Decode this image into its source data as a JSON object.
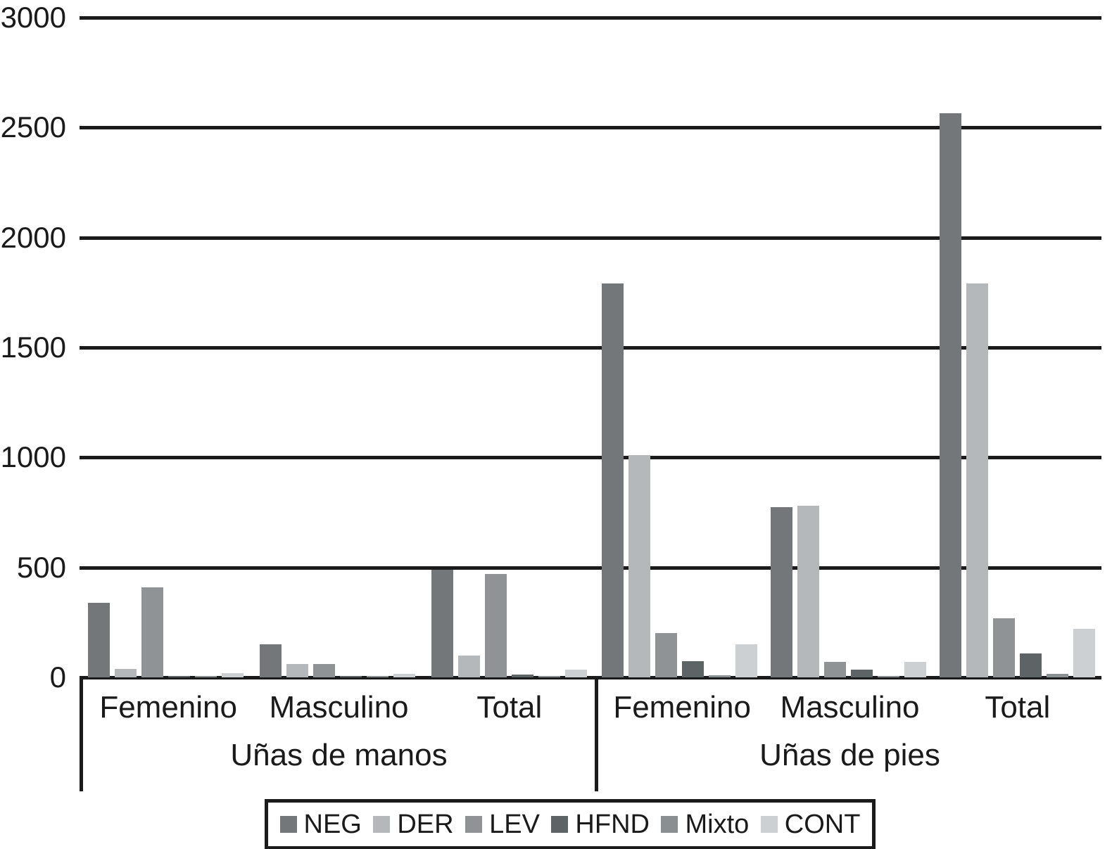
{
  "chart_data": {
    "type": "bar",
    "title": "",
    "xlabel": "",
    "ylabel": "",
    "ylim": [
      0,
      3000
    ],
    "yticks": [
      0,
      500,
      1000,
      1500,
      2000,
      2500,
      3000
    ],
    "grid": "horizontal",
    "legend_position": "bottom",
    "series_names": [
      "NEG",
      "DER",
      "LEV",
      "HFND",
      "Mixto",
      "CONT"
    ],
    "series_colors": [
      "#747779",
      "#b5b8bb",
      "#8f9396",
      "#5e6366",
      "#8a8f92",
      "#cdd0d2"
    ],
    "groups": [
      {
        "label": "Uñas de manos",
        "subgroups": [
          {
            "label": "Femenino",
            "values": [
              340,
              40,
              410,
              8,
              3,
              20
            ]
          },
          {
            "label": "Masculino",
            "values": [
              150,
              60,
              60,
              5,
              2,
              15
            ]
          },
          {
            "label": "Total",
            "values": [
              490,
              100,
              470,
              13,
              5,
              35
            ]
          }
        ]
      },
      {
        "label": "Uñas de pies",
        "subgroups": [
          {
            "label": "Femenino",
            "values": [
              1790,
              1010,
              200,
              75,
              10,
              150
            ]
          },
          {
            "label": "Masculino",
            "values": [
              775,
              780,
              70,
              35,
              5,
              70
            ]
          },
          {
            "label": "Total",
            "values": [
              2565,
              1790,
              270,
              110,
              15,
              220
            ]
          }
        ]
      }
    ],
    "colors": {
      "axis_line": "#1b1b1b",
      "text": "#1a1a1a",
      "background": "#ffffff"
    }
  }
}
